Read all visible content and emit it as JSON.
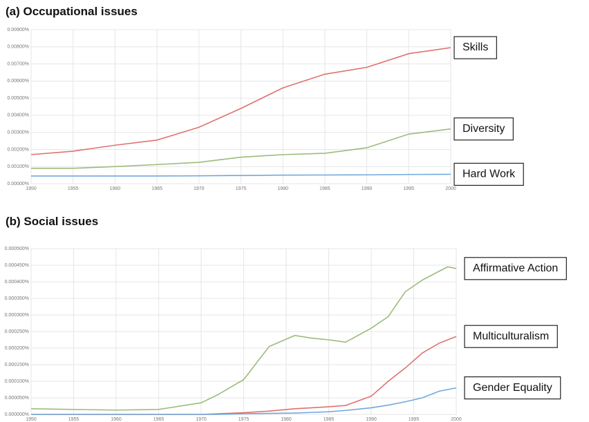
{
  "chart_data": [
    {
      "type": "line",
      "title": "(a)  Occupational issues",
      "x": [
        1950,
        1955,
        1960,
        1965,
        1970,
        1975,
        1980,
        1985,
        1990,
        1995,
        2000
      ],
      "series": [
        {
          "name": "Skills",
          "color": "#e07070",
          "values": [
            0.0017,
            0.0019,
            0.00225,
            0.00255,
            0.0033,
            0.0044,
            0.0056,
            0.0064,
            0.0068,
            0.0076,
            0.00795
          ]
        },
        {
          "name": "Diversity",
          "color": "#9bbb7b",
          "values": [
            0.0009,
            0.0009,
            0.001,
            0.00112,
            0.00125,
            0.00155,
            0.0017,
            0.00178,
            0.0021,
            0.0029,
            0.0032
          ]
        },
        {
          "name": "Hard Work",
          "color": "#6fa8dc",
          "values": [
            0.00045,
            0.00045,
            0.00045,
            0.00045,
            0.00046,
            0.00048,
            0.0005,
            0.00051,
            0.00052,
            0.00054,
            0.00055
          ]
        }
      ],
      "xlim": [
        1950,
        2000
      ],
      "xticks": [
        1950,
        1955,
        1960,
        1965,
        1970,
        1975,
        1980,
        1985,
        1990,
        1995,
        2000
      ],
      "ylim": [
        0,
        0.009
      ],
      "yticks": [
        {
          "value": 0,
          "label": "0.00000%"
        },
        {
          "value": 0.001,
          "label": "0.00100%"
        },
        {
          "value": 0.002,
          "label": "0.00200%"
        },
        {
          "value": 0.003,
          "label": "0.00300%"
        },
        {
          "value": 0.004,
          "label": "0.00400%"
        },
        {
          "value": 0.005,
          "label": "0.00500%"
        },
        {
          "value": 0.006,
          "label": "0.00600%"
        },
        {
          "value": 0.007,
          "label": "0.00700%"
        },
        {
          "value": 0.008,
          "label": "0.00800%"
        },
        {
          "value": 0.009,
          "label": "0.00900%"
        }
      ],
      "grid": true
    },
    {
      "type": "line",
      "title": "(b)  Social issues",
      "x": [
        1950,
        1955,
        1960,
        1965,
        1970,
        1972,
        1975,
        1978,
        1981,
        1983,
        1985,
        1987,
        1990,
        1992,
        1994,
        1996,
        1998,
        1999,
        2000
      ],
      "series": [
        {
          "name": "Affirmative Action",
          "color": "#9bbb7b",
          "values": [
            1.7e-05,
            1.5e-05,
            1.3e-05,
            1.5e-05,
            3.5e-05,
            6e-05,
            0.000105,
            0.000205,
            0.000238,
            0.00023,
            0.000225,
            0.000218,
            0.00026,
            0.000295,
            0.00037,
            0.000405,
            0.000432,
            0.000445,
            0.00044
          ]
        },
        {
          "name": "Multiculturalism",
          "color": "#e07070",
          "values": [
            0,
            0,
            0,
            0,
            0,
            2e-06,
            5e-06,
            1e-05,
            1.7e-05,
            2e-05,
            2.3e-05,
            2.7e-05,
            5.5e-05,
            0.0001,
            0.00014,
            0.000185,
            0.000215,
            0.000225,
            0.000235
          ]
        },
        {
          "name": "Gender Equality",
          "color": "#6fa8dc",
          "values": [
            0,
            0,
            0,
            0,
            0,
            0,
            2e-06,
            3e-06,
            4e-06,
            6e-06,
            8e-06,
            1.2e-05,
            2e-05,
            2.8e-05,
            3.8e-05,
            5e-05,
            7e-05,
            7.5e-05,
            8e-05
          ]
        }
      ],
      "xlim": [
        1950,
        2000
      ],
      "xticks": [
        1950,
        1955,
        1960,
        1965,
        1970,
        1975,
        1980,
        1985,
        1990,
        1995,
        2000
      ],
      "ylim": [
        0,
        0.0005
      ],
      "yticks": [
        {
          "value": 0,
          "label": "0.000000%"
        },
        {
          "value": 5e-05,
          "label": "0.000050%"
        },
        {
          "value": 0.0001,
          "label": "0.000100%"
        },
        {
          "value": 0.00015,
          "label": "0.000150%"
        },
        {
          "value": 0.0002,
          "label": "0.000200%"
        },
        {
          "value": 0.00025,
          "label": "0.000250%"
        },
        {
          "value": 0.0003,
          "label": "0.000300%"
        },
        {
          "value": 0.00035,
          "label": "0.000350%"
        },
        {
          "value": 0.0004,
          "label": "0.000400%"
        },
        {
          "value": 0.00045,
          "label": "0.000450%"
        },
        {
          "value": 0.0005,
          "label": "0.000500%"
        }
      ],
      "grid": true
    }
  ]
}
